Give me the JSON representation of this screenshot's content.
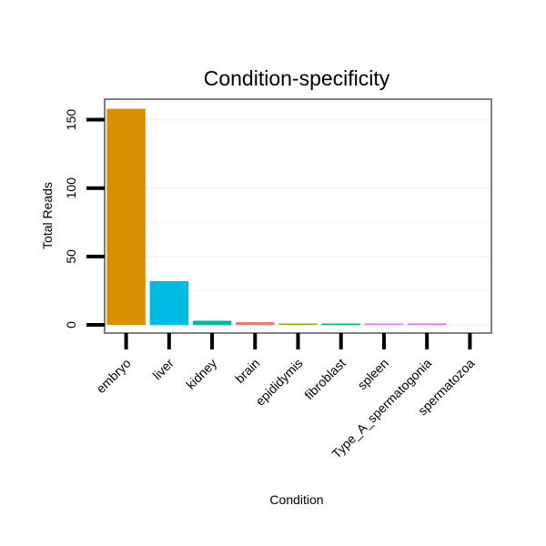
{
  "chart_data": {
    "type": "bar",
    "title": "Condition-specificity",
    "xlabel": "Condition",
    "ylabel": "Total Reads",
    "categories": [
      "embryo",
      "liver",
      "kidney",
      "brain",
      "epididymis",
      "fibroblast",
      "spleen",
      "Type_A_spermatogonia",
      "spermatozoa"
    ],
    "values": [
      158,
      32,
      3,
      2,
      1,
      1,
      1,
      1,
      0
    ],
    "colors": [
      "#D89000",
      "#00BCE3",
      "#00BA9C",
      "#F8766D",
      "#A3A500",
      "#00BF65",
      "#D17EFF",
      "#E76BF3",
      "#C09B00"
    ],
    "ylim": [
      -6,
      165
    ],
    "yticks": [
      0,
      50,
      100,
      150
    ],
    "grid_lines": [
      0,
      25,
      50,
      75,
      100,
      125,
      150
    ],
    "grid": true,
    "legend": "none"
  }
}
